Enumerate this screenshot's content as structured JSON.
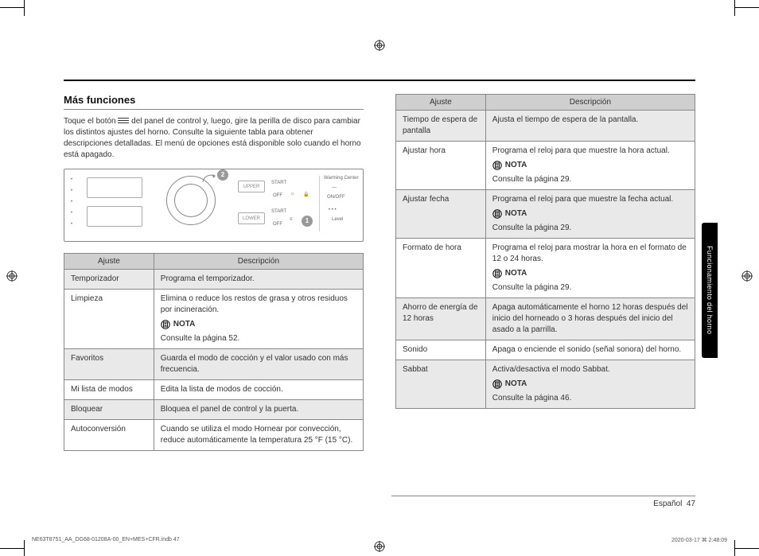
{
  "heading": "Más funciones",
  "intro_prefix": "Toque el botón ",
  "intro_suffix": " del panel de control y, luego, gire la perilla de disco para cambiar los distintos ajustes del horno. Consulte la siguiente tabla para obtener descripciones detalladas. El menú de opciones está disponible solo cuando el horno está apagado.",
  "panel": {
    "badge1": "1",
    "badge2": "2",
    "upper": "UPPER",
    "lower": "LOWER",
    "start": "START",
    "off": "OFF",
    "warming": "Warming Center",
    "onoff": "ON/OFF",
    "level": "Level"
  },
  "th_ajuste": "Ajuste",
  "th_desc": "Descripción",
  "nota_label": "NOTA",
  "left_rows": [
    {
      "a": "Temporizador",
      "d": "Programa el temporizador.",
      "shade": true
    },
    {
      "a": "Limpieza",
      "d": "Elimina o reduce los restos de grasa y otros residuos por incineración.",
      "nota": "Consulte la página 52.",
      "shade": false
    },
    {
      "a": "Favoritos",
      "d": "Guarda el modo de cocción y el valor usado con más frecuencia.",
      "shade": true
    },
    {
      "a": "Mi lista de modos",
      "d": "Edita la lista de modos de cocción.",
      "shade": false
    },
    {
      "a": "Bloquear",
      "d": "Bloquea el panel de control y la puerta.",
      "shade": true
    },
    {
      "a": "Autoconversión",
      "d": "Cuando se utiliza el modo Hornear por convección, reduce automáticamente la temperatura 25 °F (15 °C).",
      "shade": false
    }
  ],
  "right_rows": [
    {
      "a": "Tiempo de espera de pantalla",
      "d": "Ajusta el tiempo de espera de la pantalla.",
      "shade": true
    },
    {
      "a": "Ajustar hora",
      "d": "Programa el reloj para que muestre la hora actual.",
      "nota": "Consulte la página 29.",
      "shade": false
    },
    {
      "a": "Ajustar fecha",
      "d": "Programa el reloj para que muestre la fecha actual.",
      "nota": "Consulte la página 29.",
      "shade": true
    },
    {
      "a": "Formato de hora",
      "d": "Programa el reloj para mostrar la hora en el formato de 12 o 24 horas.",
      "nota": "Consulte la página 29.",
      "shade": false
    },
    {
      "a": "Ahorro de energía de 12 horas",
      "d": "Apaga automáticamente el horno 12 horas después del inicio del horneado o 3 horas después del inicio del asado a la parrilla.",
      "shade": true
    },
    {
      "a": "Sonido",
      "d": "Apaga o enciende el sonido (señal sonora) del horno.",
      "shade": false
    },
    {
      "a": "Sabbat",
      "d": "Activa/desactiva el modo Sabbat.",
      "nota": "Consulte la página 46.",
      "shade": true
    }
  ],
  "side_tab": "Funcionamiento del horno",
  "footer_lang": "Español",
  "footer_page": "47",
  "print_left": "NE63T8751_AA_DG68-01208A-00_EN+MES+CFR.indb   47",
  "print_right": "2020-03-17   ⌘ 2:48:09"
}
